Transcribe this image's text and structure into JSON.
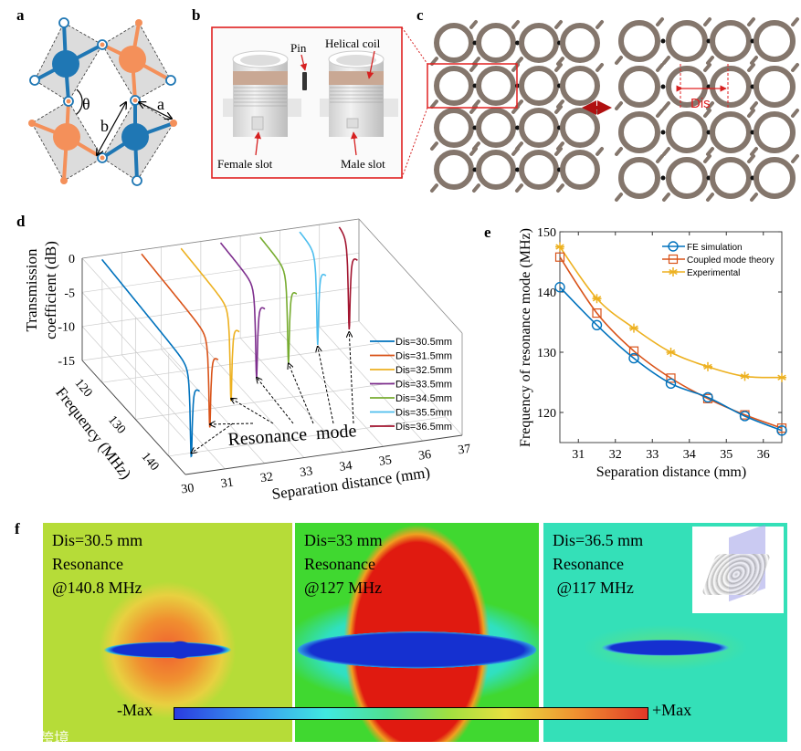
{
  "panel_labels": {
    "a": "a",
    "b": "b",
    "c": "c",
    "d": "d",
    "e": "e",
    "f": "f"
  },
  "panel_a": {
    "theta": "θ",
    "a": "a",
    "b": "b"
  },
  "panel_b": {
    "pin": "Pin",
    "helical_coil": "Helical coil",
    "female_slot": "Female slot",
    "male_slot": "Male slot"
  },
  "panel_c": {
    "dis": "Dis"
  },
  "panel_f": {
    "panels": [
      {
        "dis": "Dis=30.5 mm",
        "resonance": "Resonance",
        "freq": "@140.8 MHz"
      },
      {
        "dis": "Dis=33 mm",
        "resonance": "Resonance",
        "freq": "@127 MHz"
      },
      {
        "dis": "Dis=36.5 mm",
        "resonance": "Resonance",
        "freq": " @117 MHz"
      }
    ],
    "colorbar_min": "-Max",
    "colorbar_max": "+Max"
  },
  "watermark": "大数跨境",
  "colors": {
    "blue": "#1f77b4",
    "orange": "#f4905a",
    "red": "#d62020",
    "ring": "#84766c"
  },
  "chart_data": [
    {
      "type": "line",
      "panel": "d",
      "title": "",
      "xlabel": "Separation distance (mm)",
      "ylabel": "Frequency (MHz)",
      "zlabel_lines": [
        "Transmission",
        "coefficient (dB)"
      ],
      "xlim": [
        30,
        37
      ],
      "ylim": [
        114,
        145
      ],
      "zlim": [
        -15,
        0
      ],
      "xticks": [
        "30",
        "31",
        "32",
        "33",
        "34",
        "35",
        "36",
        "37"
      ],
      "yticks": [
        "120",
        "130",
        "140"
      ],
      "zticks": [
        "0",
        "-5",
        "-10",
        "-15"
      ],
      "annotation": "Resonance  mode",
      "grid": true,
      "legend_position": "right",
      "series": [
        {
          "name": "Dis=30.5mm",
          "dis": 30.5,
          "resonance_mhz": 140.8,
          "color": "#0072bd"
        },
        {
          "name": "Dis=31.5mm",
          "dis": 31.5,
          "resonance_mhz": 134.5,
          "color": "#d95319"
        },
        {
          "name": "Dis=32.5mm",
          "dis": 32.5,
          "resonance_mhz": 129.0,
          "color": "#edb120"
        },
        {
          "name": "Dis=33.5mm",
          "dis": 33.5,
          "resonance_mhz": 124.8,
          "color": "#7e2f8e"
        },
        {
          "name": "Dis=34.5mm",
          "dis": 34.5,
          "resonance_mhz": 122.5,
          "color": "#77ac30"
        },
        {
          "name": "Dis=35.5mm",
          "dis": 35.5,
          "resonance_mhz": 119.4,
          "color": "#4dbeee"
        },
        {
          "name": "Dis=36.5mm",
          "dis": 36.5,
          "resonance_mhz": 117.0,
          "color": "#a2142f"
        }
      ]
    },
    {
      "type": "line",
      "panel": "e",
      "title": "",
      "xlabel": "Separation distance (mm)",
      "ylabel": "Frequency of resonance mode (MHz)",
      "xlim": [
        30.5,
        36.5
      ],
      "ylim": [
        115,
        150
      ],
      "xticks": [
        31,
        32,
        33,
        34,
        35,
        36
      ],
      "yticks": [
        120,
        130,
        140,
        150
      ],
      "legend_position": "top-right",
      "x": [
        30.5,
        31.5,
        32.5,
        33.5,
        34.5,
        35.5,
        36.5
      ],
      "series": [
        {
          "name": "FE simulation",
          "marker": "circle",
          "color": "#0072bd",
          "values": [
            140.8,
            134.5,
            129.0,
            124.8,
            122.5,
            119.4,
            117.0
          ]
        },
        {
          "name": "Coupled mode theory",
          "marker": "square",
          "color": "#d95319",
          "values": [
            145.8,
            136.5,
            130.2,
            125.7,
            122.3,
            119.6,
            117.4
          ]
        },
        {
          "name": "Experimental",
          "marker": "star",
          "color": "#edb120",
          "values": [
            147.5,
            138.9,
            134.0,
            130.0,
            127.6,
            126.0,
            125.8
          ]
        }
      ]
    }
  ]
}
